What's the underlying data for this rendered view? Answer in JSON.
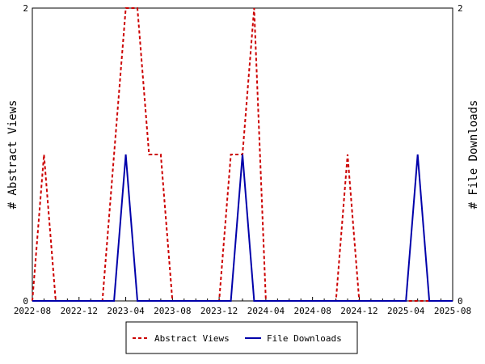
{
  "chart_data": {
    "type": "line",
    "ylabel_left": "# Abstract Views",
    "ylabel_right": "# File Downloads",
    "ylim": [
      0,
      2
    ],
    "y_ticks": [
      "0",
      "2"
    ],
    "x_ticks": [
      "2022-08",
      "2022-12",
      "2023-04",
      "2023-08",
      "2023-12",
      "2024-04",
      "2024-08",
      "2024-12",
      "2025-04",
      "2025-08"
    ],
    "x": [
      "2022-08",
      "2022-09",
      "2022-10",
      "2022-11",
      "2022-12",
      "2023-01",
      "2023-02",
      "2023-03",
      "2023-04",
      "2023-05",
      "2023-06",
      "2023-07",
      "2023-08",
      "2023-09",
      "2023-10",
      "2023-11",
      "2023-12",
      "2024-01",
      "2024-02",
      "2024-03",
      "2024-04",
      "2024-05",
      "2024-06",
      "2024-07",
      "2024-08",
      "2024-09",
      "2024-10",
      "2024-11",
      "2024-12",
      "2025-01",
      "2025-02",
      "2025-03",
      "2025-04",
      "2025-05",
      "2025-06",
      "2025-07",
      "2025-08"
    ],
    "series": [
      {
        "name": "Abstract Views",
        "color": "#cc0000",
        "dash": true,
        "values": [
          0,
          1,
          0,
          0,
          0,
          0,
          0,
          1,
          2,
          2,
          1,
          1,
          0,
          0,
          0,
          0,
          0,
          1,
          1,
          2,
          0,
          0,
          0,
          0,
          0,
          0,
          0,
          1,
          0,
          0,
          0,
          0,
          0,
          0,
          0,
          0,
          0
        ]
      },
      {
        "name": "File Downloads",
        "color": "#0000aa",
        "dash": false,
        "values": [
          0,
          0,
          0,
          0,
          0,
          0,
          0,
          0,
          1,
          0,
          0,
          0,
          0,
          0,
          0,
          0,
          0,
          0,
          1,
          0,
          0,
          0,
          0,
          0,
          0,
          0,
          0,
          0,
          0,
          0,
          0,
          0,
          0,
          1,
          0,
          0,
          0
        ]
      }
    ],
    "legend_position": "bottom"
  }
}
